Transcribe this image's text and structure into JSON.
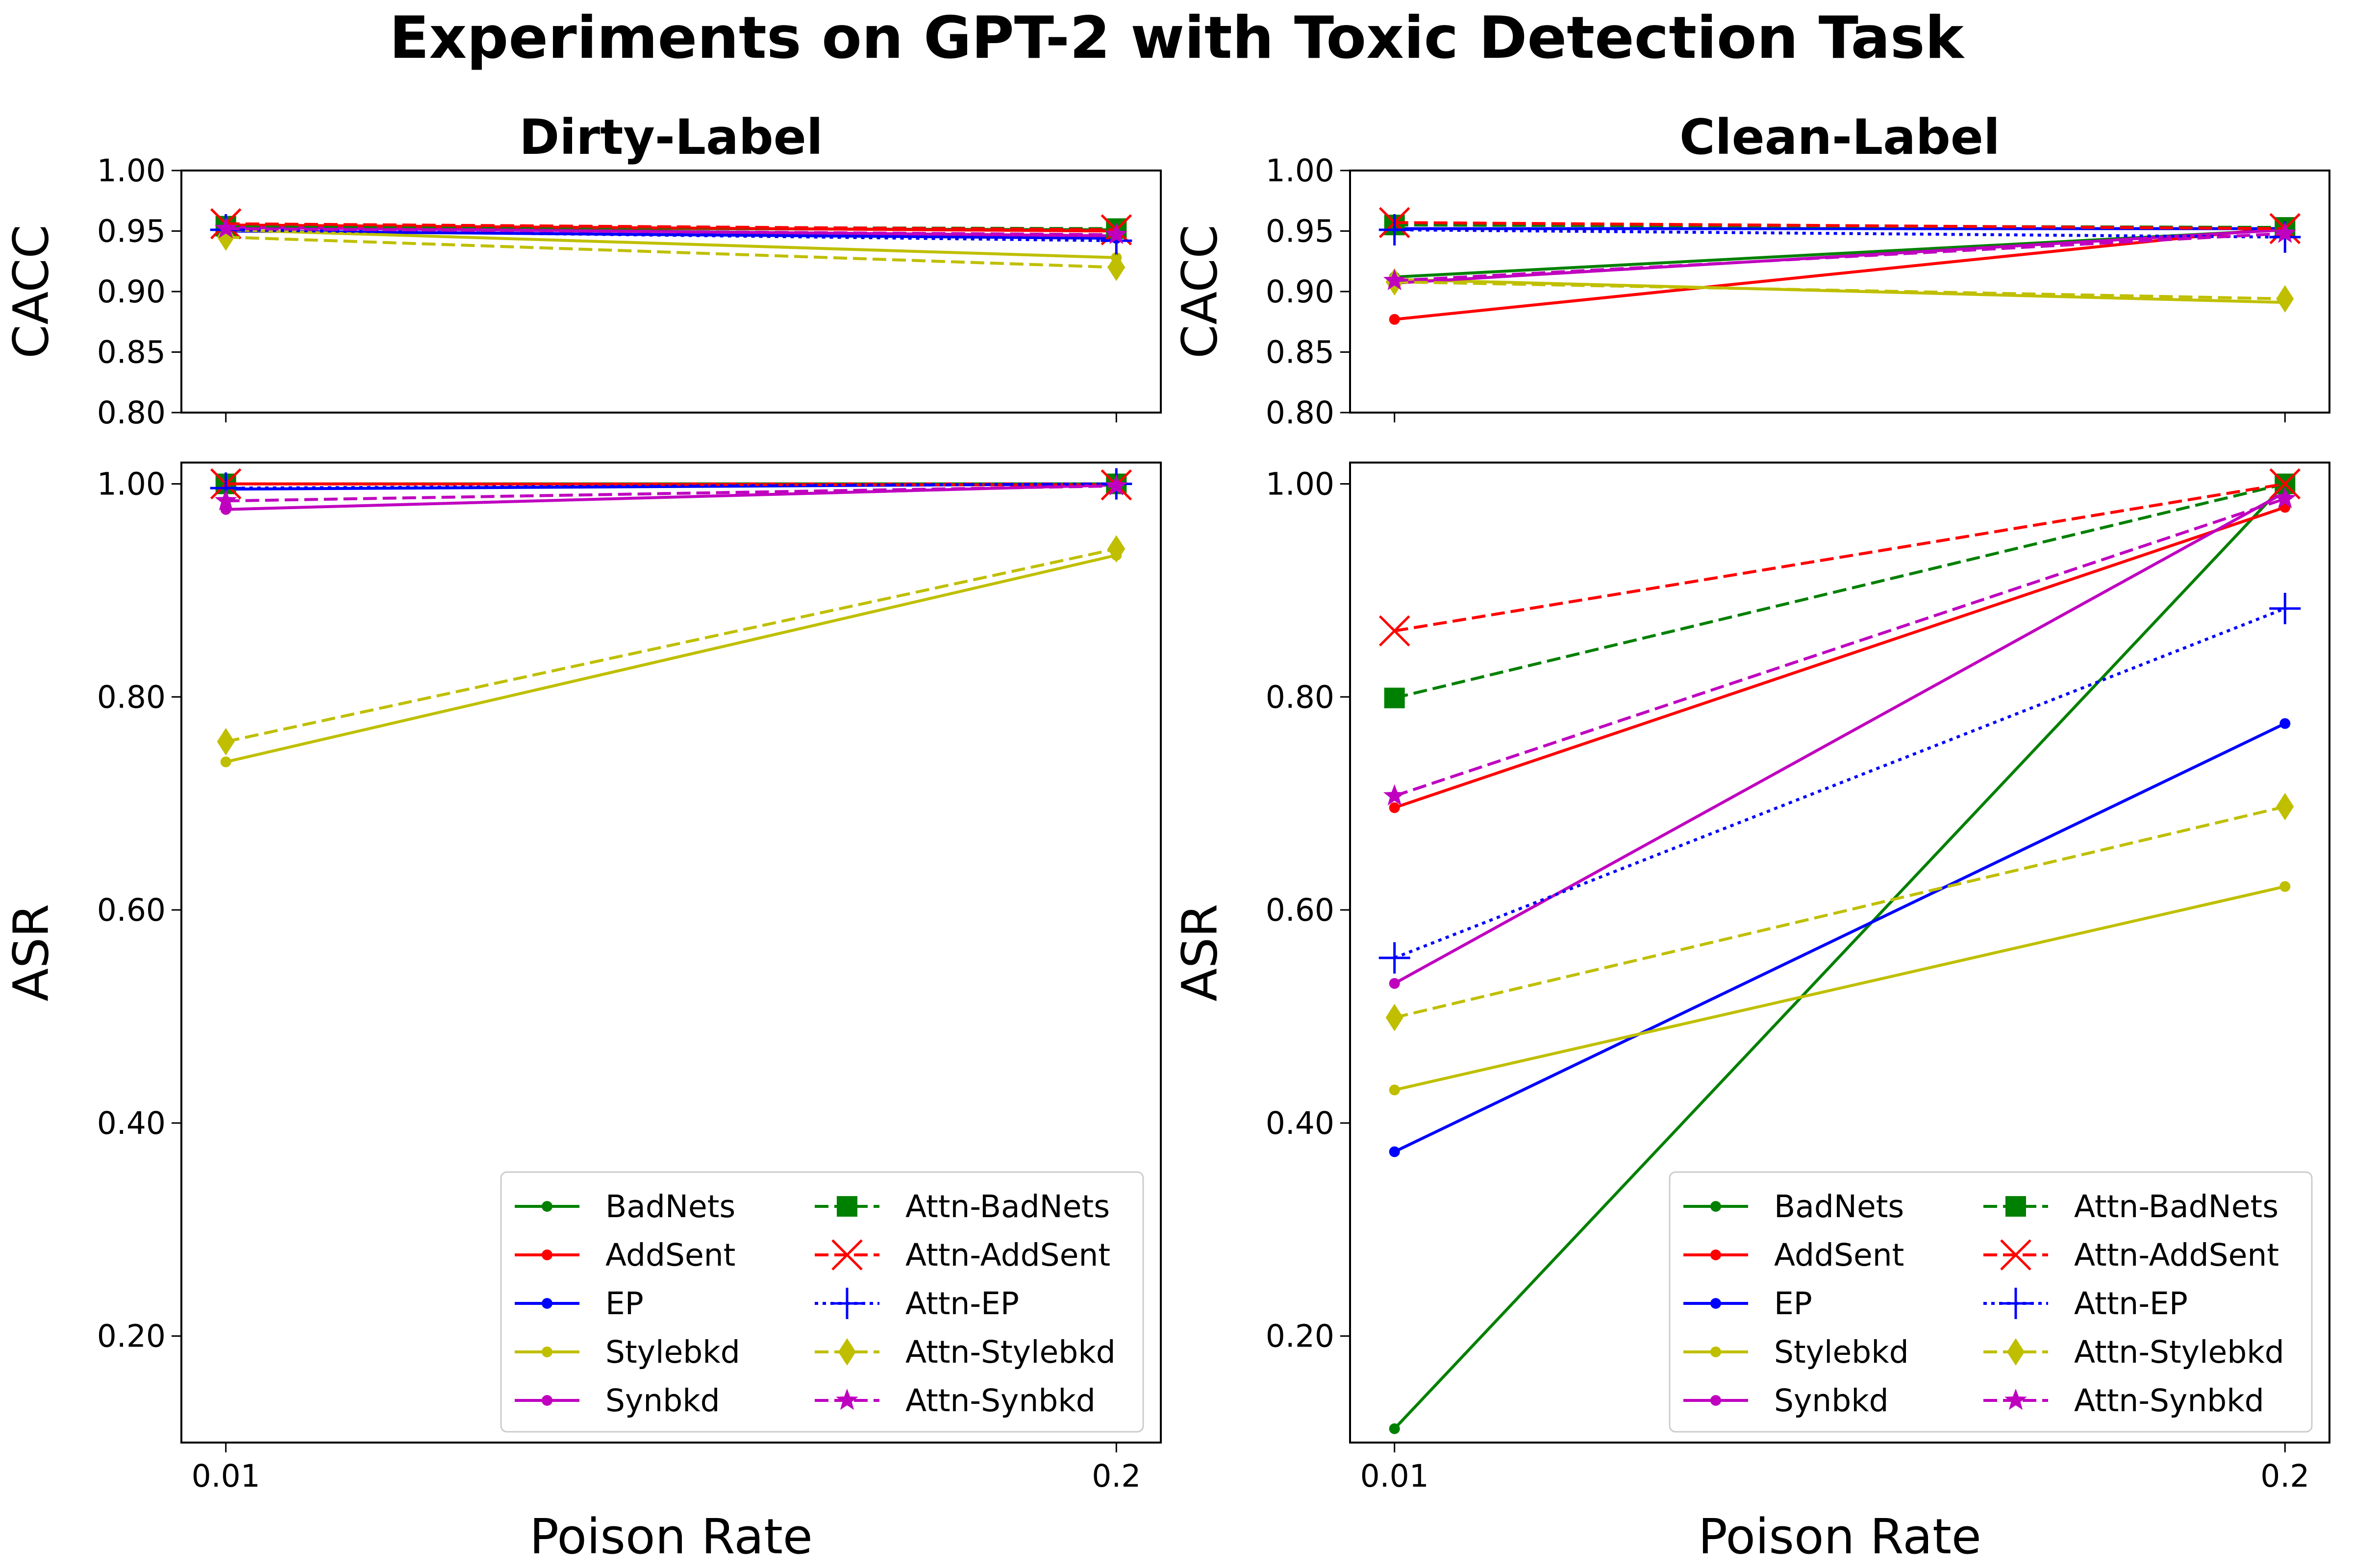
{
  "figure_title": "Experiments on GPT-2 with Toxic Detection Task",
  "chart_data": [
    {
      "type": "line",
      "id": "dirty-cacc",
      "title": "Dirty-Label",
      "xlabel": "",
      "ylabel": "CACC",
      "categories": [
        "0.01",
        "0.2"
      ],
      "ylim": [
        0.8,
        1.0
      ],
      "yticks": [
        "0.80",
        "0.85",
        "0.90",
        "0.95",
        "1.00"
      ],
      "xtick_labels_visible": false,
      "series": [
        {
          "name": "BadNets",
          "values": [
            0.953,
            0.951
          ]
        },
        {
          "name": "AddSent",
          "values": [
            0.955,
            0.95
          ]
        },
        {
          "name": "EP",
          "values": [
            0.95,
            0.944
          ]
        },
        {
          "name": "Stylebkd",
          "values": [
            0.951,
            0.928
          ]
        },
        {
          "name": "Synbkd",
          "values": [
            0.953,
            0.946
          ]
        },
        {
          "name": "Attn-BadNets",
          "values": [
            0.954,
            0.952
          ]
        },
        {
          "name": "Attn-AddSent",
          "values": [
            0.956,
            0.951
          ]
        },
        {
          "name": "Attn-EP",
          "values": [
            0.951,
            0.942
          ]
        },
        {
          "name": "Attn-Stylebkd",
          "values": [
            0.945,
            0.92
          ]
        },
        {
          "name": "Attn-Synbkd",
          "values": [
            0.952,
            0.947
          ]
        }
      ]
    },
    {
      "type": "line",
      "id": "clean-cacc",
      "title": "Clean-Label",
      "xlabel": "",
      "ylabel": "CACC",
      "categories": [
        "0.01",
        "0.2"
      ],
      "ylim": [
        0.8,
        1.0
      ],
      "yticks": [
        "0.80",
        "0.85",
        "0.90",
        "0.95",
        "1.00"
      ],
      "xtick_labels_visible": false,
      "series": [
        {
          "name": "BadNets",
          "values": [
            0.912,
            0.951
          ]
        },
        {
          "name": "AddSent",
          "values": [
            0.877,
            0.953
          ]
        },
        {
          "name": "EP",
          "values": [
            0.952,
            0.952
          ]
        },
        {
          "name": "Stylebkd",
          "values": [
            0.91,
            0.891
          ]
        },
        {
          "name": "Synbkd",
          "values": [
            0.907,
            0.951
          ]
        },
        {
          "name": "Attn-BadNets",
          "values": [
            0.955,
            0.953
          ]
        },
        {
          "name": "Attn-AddSent",
          "values": [
            0.957,
            0.952
          ]
        },
        {
          "name": "Attn-EP",
          "values": [
            0.951,
            0.945
          ]
        },
        {
          "name": "Attn-Stylebkd",
          "values": [
            0.908,
            0.894
          ]
        },
        {
          "name": "Attn-Synbkd",
          "values": [
            0.909,
            0.948
          ]
        }
      ]
    },
    {
      "type": "line",
      "id": "dirty-asr",
      "title": "",
      "xlabel": "Poison Rate",
      "ylabel": "ASR",
      "categories": [
        "0.01",
        "0.2"
      ],
      "ylim": [
        0.1,
        1.02
      ],
      "yticks": [
        "0.20",
        "0.40",
        "0.60",
        "0.80",
        "1.00"
      ],
      "xtick_labels_visible": true,
      "legend_position": "lower-right",
      "series": [
        {
          "name": "BadNets",
          "values": [
            1.0,
            1.0
          ]
        },
        {
          "name": "AddSent",
          "values": [
            1.0,
            1.0
          ]
        },
        {
          "name": "EP",
          "values": [
            0.995,
            1.0
          ]
        },
        {
          "name": "Stylebkd",
          "values": [
            0.739,
            0.933
          ]
        },
        {
          "name": "Synbkd",
          "values": [
            0.976,
            0.999
          ]
        },
        {
          "name": "Attn-BadNets",
          "values": [
            1.0,
            1.0
          ]
        },
        {
          "name": "Attn-AddSent",
          "values": [
            1.0,
            0.999
          ]
        },
        {
          "name": "Attn-EP",
          "values": [
            0.996,
            1.0
          ]
        },
        {
          "name": "Attn-Stylebkd",
          "values": [
            0.758,
            0.939
          ]
        },
        {
          "name": "Attn-Synbkd",
          "values": [
            0.984,
            0.998
          ]
        }
      ]
    },
    {
      "type": "line",
      "id": "clean-asr",
      "title": "",
      "xlabel": "Poison Rate",
      "ylabel": "ASR",
      "categories": [
        "0.01",
        "0.2"
      ],
      "ylim": [
        0.1,
        1.02
      ],
      "yticks": [
        "0.20",
        "0.40",
        "0.60",
        "0.80",
        "1.00"
      ],
      "xtick_labels_visible": true,
      "legend_position": "lower-right",
      "series": [
        {
          "name": "BadNets",
          "values": [
            0.113,
            1.0
          ]
        },
        {
          "name": "AddSent",
          "values": [
            0.696,
            0.978
          ]
        },
        {
          "name": "EP",
          "values": [
            0.373,
            0.775
          ]
        },
        {
          "name": "Stylebkd",
          "values": [
            0.431,
            0.622
          ]
        },
        {
          "name": "Synbkd",
          "values": [
            0.531,
            0.992
          ]
        },
        {
          "name": "Attn-BadNets",
          "values": [
            0.799,
            1.0
          ]
        },
        {
          "name": "Attn-AddSent",
          "values": [
            0.862,
            1.0
          ]
        },
        {
          "name": "Attn-EP",
          "values": [
            0.555,
            0.883
          ]
        },
        {
          "name": "Attn-Stylebkd",
          "values": [
            0.499,
            0.697
          ]
        },
        {
          "name": "Attn-Synbkd",
          "values": [
            0.707,
            0.986
          ]
        }
      ]
    }
  ],
  "legend": {
    "entries": [
      "BadNets",
      "AddSent",
      "EP",
      "Stylebkd",
      "Synbkd",
      "Attn-BadNets",
      "Attn-AddSent",
      "Attn-EP",
      "Attn-Stylebkd",
      "Attn-Synbkd"
    ]
  },
  "series_styles": {
    "BadNets": {
      "color": "#008000",
      "dash": "solid",
      "marker": "dot"
    },
    "AddSent": {
      "color": "#ff0000",
      "dash": "solid",
      "marker": "dot"
    },
    "EP": {
      "color": "#0000ff",
      "dash": "solid",
      "marker": "dot"
    },
    "Stylebkd": {
      "color": "#bfbf00",
      "dash": "solid",
      "marker": "dot"
    },
    "Synbkd": {
      "color": "#bf00bf",
      "dash": "solid",
      "marker": "dot"
    },
    "Attn-BadNets": {
      "color": "#008000",
      "dash": "dashed",
      "marker": "square"
    },
    "Attn-AddSent": {
      "color": "#ff0000",
      "dash": "dashed",
      "marker": "x"
    },
    "Attn-EP": {
      "color": "#0000ff",
      "dash": "dotted",
      "marker": "plus"
    },
    "Attn-Stylebkd": {
      "color": "#bfbf00",
      "dash": "dashed",
      "marker": "diamond"
    },
    "Attn-Synbkd": {
      "color": "#bf00bf",
      "dash": "dashed",
      "marker": "star"
    }
  }
}
